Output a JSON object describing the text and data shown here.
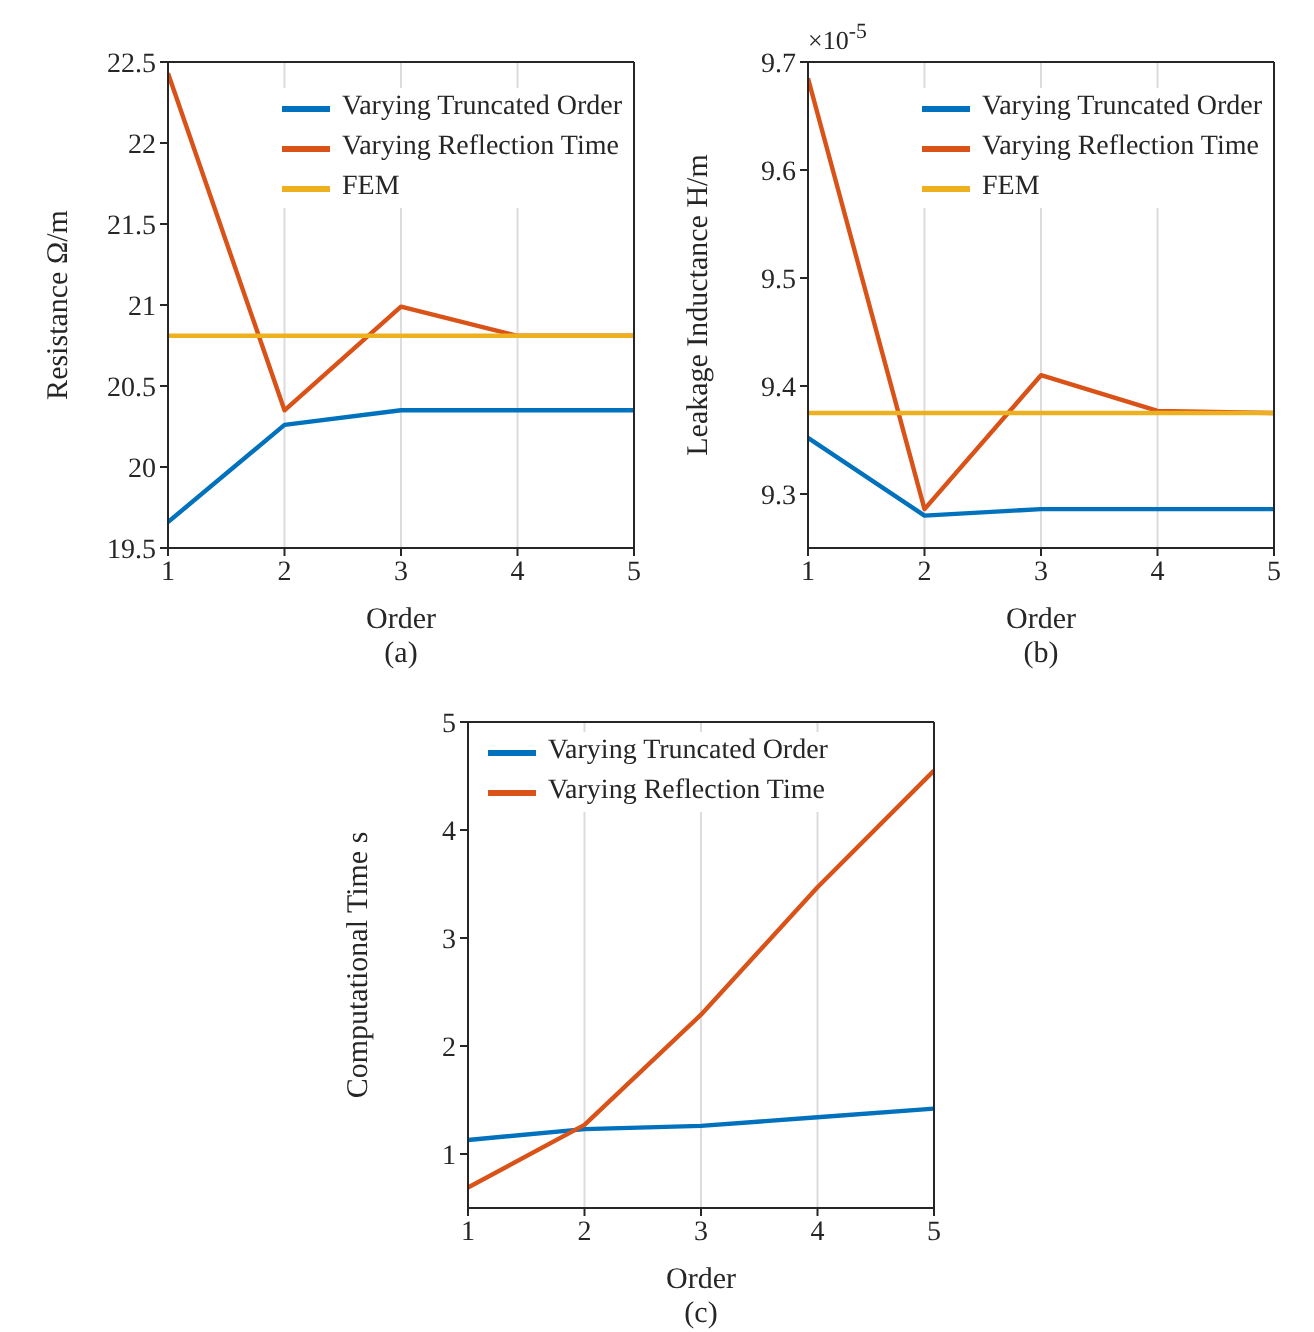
{
  "chart_data": [
    {
      "type": "line",
      "subtitle": "(a)",
      "xlabel": "Order",
      "ylabel": "Resistance Ω/m",
      "x": [
        1,
        2,
        3,
        4,
        5
      ],
      "xlim": [
        1,
        5
      ],
      "xticks": [
        1,
        2,
        3,
        4,
        5
      ],
      "ylim": [
        19.5,
        22.5
      ],
      "yticks": [
        19.5,
        20,
        20.5,
        21,
        21.5,
        22,
        22.5
      ],
      "grid": true,
      "legend": "top right",
      "series": [
        {
          "name": "Varying Truncated Order",
          "color": "#0072bd",
          "values": [
            19.66,
            20.26,
            20.35,
            20.35,
            20.35
          ]
        },
        {
          "name": "Varying Reflection Time",
          "color": "#d95319",
          "values": [
            22.43,
            20.35,
            20.99,
            20.81,
            20.81
          ]
        },
        {
          "name": "FEM",
          "color": "#edb120",
          "values": [
            20.81,
            20.81,
            20.81,
            20.81,
            20.81
          ]
        }
      ]
    },
    {
      "type": "line",
      "subtitle": "(b)",
      "xlabel": "Order",
      "ylabel": "Leakage Inductance H/m",
      "annotations": [
        "×10$^{-5}$"
      ],
      "x": [
        1,
        2,
        3,
        4,
        5
      ],
      "xlim": [
        1,
        5
      ],
      "xticks": [
        1,
        2,
        3,
        4,
        5
      ],
      "ylim": [
        9.25,
        9.7
      ],
      "yticks": [
        9.3,
        9.4,
        9.5,
        9.6,
        9.7
      ],
      "grid": true,
      "legend": "top right",
      "series": [
        {
          "name": "Varying Truncated Order",
          "color": "#0072bd",
          "values": [
            9.352,
            9.28,
            9.286,
            9.286,
            9.286
          ]
        },
        {
          "name": "Varying Reflection Time",
          "color": "#d95319",
          "values": [
            9.685,
            9.286,
            9.41,
            9.377,
            9.375
          ]
        },
        {
          "name": "FEM",
          "color": "#edb120",
          "values": [
            9.375,
            9.375,
            9.375,
            9.375,
            9.375
          ]
        }
      ]
    },
    {
      "type": "line",
      "subtitle": "(c)",
      "xlabel": "Order",
      "ylabel": "Computational Time s",
      "x": [
        1,
        2,
        3,
        4,
        5
      ],
      "xlim": [
        1,
        5
      ],
      "xticks": [
        1,
        2,
        3,
        4,
        5
      ],
      "ylim": [
        0.5,
        5
      ],
      "yticks": [
        1,
        2,
        3,
        4,
        5
      ],
      "grid": true,
      "legend": "top left",
      "series": [
        {
          "name": "Varying Truncated Order",
          "color": "#0072bd",
          "values": [
            1.13,
            1.23,
            1.26,
            1.34,
            1.42
          ]
        },
        {
          "name": "Varying Reflection Time",
          "color": "#d95319",
          "values": [
            0.69,
            1.27,
            2.29,
            3.47,
            4.55
          ]
        }
      ]
    }
  ]
}
